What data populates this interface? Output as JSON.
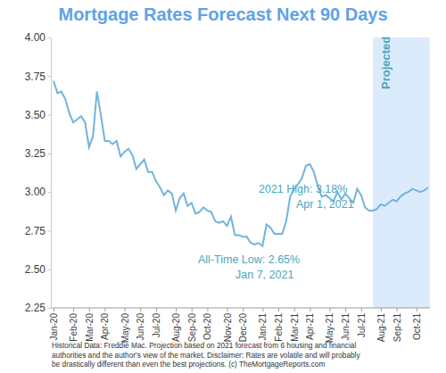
{
  "chart_data": {
    "type": "line",
    "title": "Mortgage Rates Forecast Next 90 Days",
    "color": "#72b4dc",
    "grid": false,
    "categories": [
      "Jan-20",
      null,
      null,
      null,
      null,
      "Feb-20",
      null,
      null,
      null,
      "Mar-20",
      null,
      null,
      null,
      "Apr-20",
      null,
      null,
      null,
      null,
      "May-20",
      null,
      null,
      null,
      "Jun-20",
      null,
      null,
      null,
      "Jul-20",
      null,
      null,
      null,
      null,
      "Aug-20",
      null,
      null,
      null,
      "Sep-20",
      null,
      null,
      null,
      "Oct-20",
      null,
      null,
      null,
      null,
      "Nov-20",
      null,
      null,
      null,
      "Dec-20",
      null,
      null,
      null,
      null,
      "Jan-21",
      null,
      null,
      null,
      "Feb-21",
      null,
      null,
      null,
      "Mar-21",
      null,
      null,
      null,
      "Apr-21",
      null,
      null,
      null,
      null,
      "May-21",
      null,
      null,
      null,
      "Jun-21",
      null,
      null,
      null,
      "Jul-21",
      null,
      null,
      null,
      null,
      "Aug-21",
      null,
      null,
      null,
      "Sep-21",
      null,
      null,
      null,
      null,
      "Oct-21",
      null,
      null,
      null
    ],
    "values": [
      3.72,
      3.64,
      3.65,
      3.6,
      3.51,
      3.45,
      3.47,
      3.49,
      3.45,
      3.29,
      3.36,
      3.65,
      3.5,
      3.33,
      3.33,
      3.31,
      3.33,
      3.23,
      3.26,
      3.28,
      3.24,
      3.15,
      3.18,
      3.21,
      3.13,
      3.13,
      3.07,
      3.03,
      2.98,
      3.01,
      2.99,
      2.88,
      2.96,
      2.99,
      2.91,
      2.93,
      2.86,
      2.87,
      2.9,
      2.88,
      2.87,
      2.81,
      2.8,
      2.81,
      2.78,
      2.84,
      2.72,
      2.72,
      2.71,
      2.71,
      2.67,
      2.66,
      2.67,
      2.65,
      2.79,
      2.77,
      2.73,
      2.73,
      2.73,
      2.81,
      2.97,
      3.02,
      3.05,
      3.09,
      3.17,
      3.18,
      3.13,
      3.04,
      2.97,
      2.98,
      2.96,
      2.94,
      3.0,
      2.95,
      2.99,
      2.96,
      2.93,
      3.02,
      2.98,
      2.9,
      2.88,
      2.88,
      2.89,
      2.92,
      2.91,
      2.93,
      2.95,
      2.94,
      2.97,
      2.99,
      3.0,
      3.02,
      3.01,
      3.0,
      3.01,
      3.03
    ],
    "ylim": [
      2.25,
      4.0
    ],
    "yticks": [
      2.25,
      {
        "value": 2.5,
        "label": "2.50"
      },
      2.75,
      {
        "value": 3.0,
        "label": "3.00"
      },
      3.25,
      {
        "value": 3.5,
        "label": "3.50"
      },
      3.75,
      {
        "value": 4.0,
        "label": "4.00"
      }
    ],
    "projection": {
      "label": "Projected",
      "start": 81
    },
    "annotations": [
      {
        "lines": [
          "2021 High: 3.18%",
          "Apr 1, 2021"
        ]
      },
      {
        "lines": [
          "All-Time Low: 2.65%",
          "Jan 7, 2021"
        ]
      }
    ],
    "footnote": [
      "Historical Data: Freddie Mac. Projection based on 2021 forecast from 6 housing and financial",
      "authorities and the author's view of the market. Disclaimer: Rates are volatile and will probably",
      "be drastically different than even the best projections. (c) TheMortgageReports.com"
    ]
  }
}
